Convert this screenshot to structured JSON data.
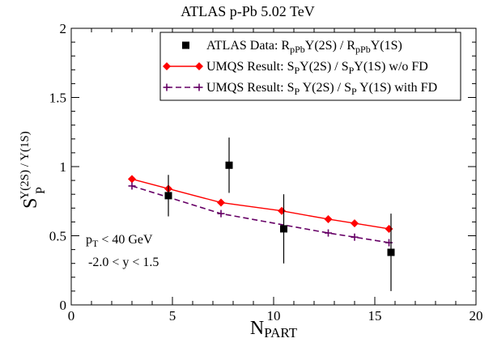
{
  "chart_data": {
    "type": "scatter",
    "title": "ATLAS p-Pb  5.02 TeV",
    "xlabel": "N",
    "xlabel_sub": "PART",
    "ylabel": "S",
    "ylabel_sub": "P",
    "ylabel_sup": "Y(2S) / Y(1S)",
    "xlim": [
      0,
      20
    ],
    "ylim": [
      0,
      2
    ],
    "x_ticks": [
      "0",
      "5",
      "10",
      "15",
      "20"
    ],
    "y_ticks": [
      "0",
      "0.5",
      "1",
      "1.5",
      "2"
    ],
    "legend_placement": "top-right",
    "series": [
      {
        "name": "ATLAS Data: R<sub>pPb</sub>Y(2S) / R<sub>pPb</sub>Y(1S)",
        "style": "points-errorbars",
        "color": "#000000",
        "x": [
          4.8,
          7.8,
          10.5,
          15.8
        ],
        "y": [
          0.79,
          1.01,
          0.55,
          0.38
        ],
        "yerr": [
          0.15,
          0.2,
          0.25,
          0.28
        ]
      },
      {
        "name": "UMQS Result: S<sub>P</sub>Y(2S) / S<sub>P</sub>Y(1S) w/o FD",
        "style": "line-diamonds",
        "color": "#ff0000",
        "x": [
          3.0,
          4.8,
          7.4,
          10.4,
          12.7,
          14.0,
          15.7
        ],
        "y": [
          0.91,
          0.84,
          0.74,
          0.68,
          0.62,
          0.59,
          0.55
        ]
      },
      {
        "name": "UMQS Result: S<sub>P</sub> Y(2S) / S<sub>P</sub> Y(1S) with FD",
        "style": "dashed-plus",
        "color": "#660066",
        "x": [
          3.0,
          7.4,
          12.7,
          14.0,
          15.7
        ],
        "y": [
          0.86,
          0.66,
          0.52,
          0.49,
          0.45
        ]
      }
    ],
    "annotations": [
      {
        "text": "p<sub>T</sub> < 40 GeV"
      },
      {
        "text": "-2.0 < y < 1.5"
      }
    ]
  }
}
